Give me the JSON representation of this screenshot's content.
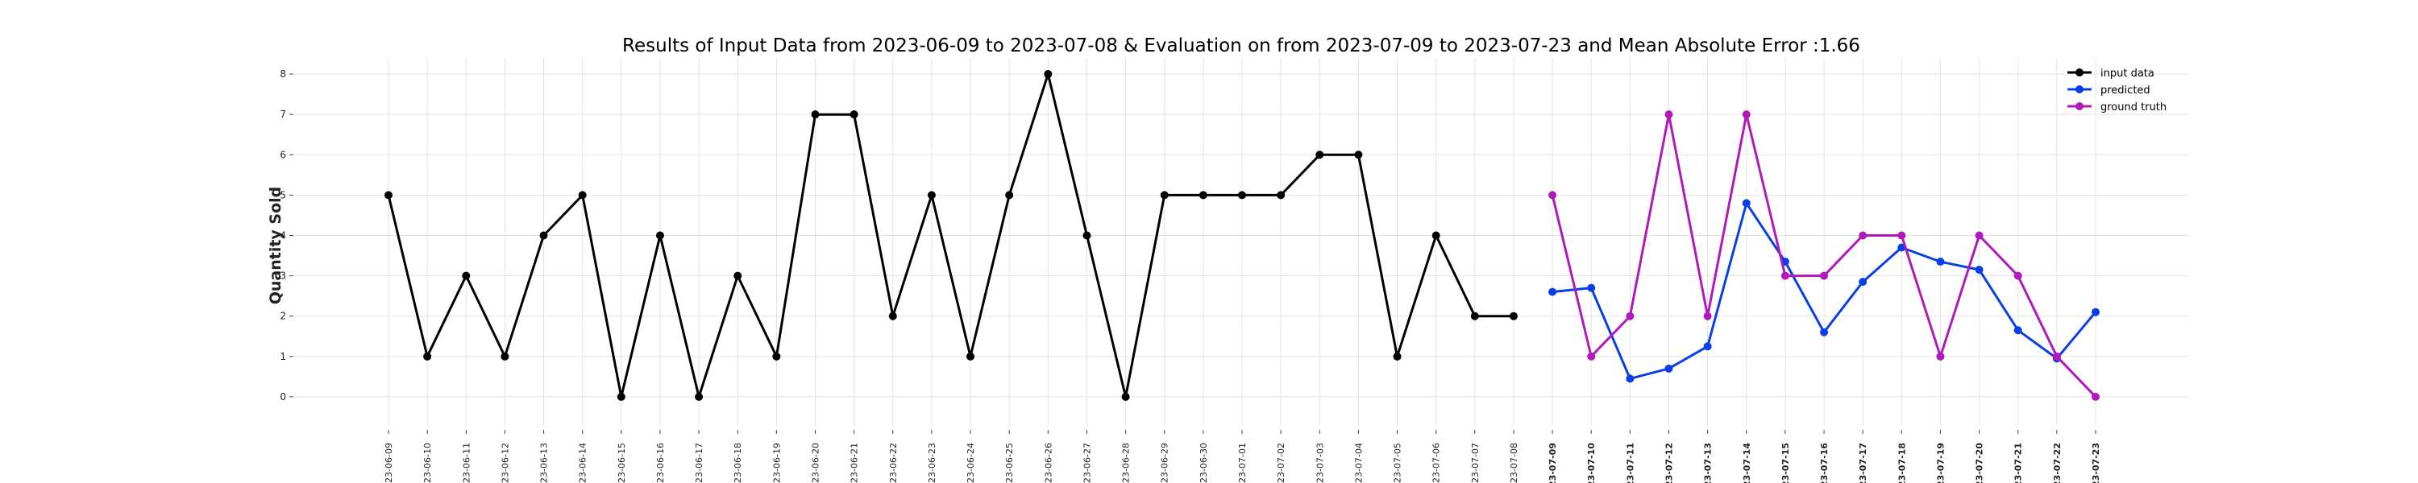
{
  "chart_data": {
    "type": "line",
    "title": "Results of Input Data from 2023-06-09 to 2023-07-08 & Evaluation on from 2023-07-09 to 2023-07-23 and Mean Absolute Error  :1.66",
    "xlabel": "",
    "ylabel": "Quantity Sold",
    "ylim": [
      -0.7,
      8.4
    ],
    "yticks": [
      0,
      1,
      2,
      3,
      4,
      5,
      6,
      7,
      8
    ],
    "grid": true,
    "legend_position": "top-right",
    "x": [
      "2023-06-09",
      "2023-06-10",
      "2023-06-11",
      "2023-06-12",
      "2023-06-13",
      "2023-06-14",
      "2023-06-15",
      "2023-06-16",
      "2023-06-17",
      "2023-06-18",
      "2023-06-19",
      "2023-06-20",
      "2023-06-21",
      "2023-06-22",
      "2023-06-23",
      "2023-06-24",
      "2023-06-25",
      "2023-06-26",
      "2023-06-27",
      "2023-06-28",
      "2023-06-29",
      "2023-06-30",
      "2023-07-01",
      "2023-07-02",
      "2023-07-03",
      "2023-07-04",
      "2023-07-05",
      "2023-07-06",
      "2023-07-07",
      "2023-07-08",
      "2023-07-09",
      "2023-07-10",
      "2023-07-11",
      "2023-07-12",
      "2023-07-13",
      "2023-07-14",
      "2023-07-15",
      "2023-07-16",
      "2023-07-17",
      "2023-07-18",
      "2023-07-19",
      "2023-07-20",
      "2023-07-21",
      "2023-07-22",
      "2023-07-23"
    ],
    "xtick_labels": [
      "-23-06-09",
      "-23-06-10",
      "-23-06-11",
      "-23-06-12",
      "-23-06-13",
      "-23-06-14",
      "-23-06-15",
      "-23-06-16",
      "-23-06-17",
      "-23-06-18",
      "-23-06-19",
      "-23-06-20",
      "-23-06-21",
      "-23-06-22",
      "-23-06-23",
      "-23-06-24",
      "-23-06-25",
      "-23-06-26",
      "-23-06-27",
      "-23-06-28",
      "-23-06-29",
      "-23-06-30",
      "-23-07-01",
      "-23-07-02",
      "-23-07-03",
      "-23-07-04",
      "-23-07-05",
      "-23-07-06",
      "-23-07-07",
      "-23-07-08",
      "-23-07-09",
      "-23-07-10",
      "-23-07-11",
      "-23-07-12",
      "-23-07-13",
      "-23-07-14",
      "-23-07-15",
      "-23-07-16",
      "-23-07-17",
      "-23-07-18",
      "-23-07-19",
      "-23-07-20",
      "-23-07-21",
      "-23-07-22",
      "-23-07-23"
    ],
    "bold_from": "2023-07-09",
    "series": [
      {
        "name": "input data",
        "color": "#000000",
        "x": [
          "2023-06-09",
          "2023-06-10",
          "2023-06-11",
          "2023-06-12",
          "2023-06-13",
          "2023-06-14",
          "2023-06-15",
          "2023-06-16",
          "2023-06-17",
          "2023-06-18",
          "2023-06-19",
          "2023-06-20",
          "2023-06-21",
          "2023-06-22",
          "2023-06-23",
          "2023-06-24",
          "2023-06-25",
          "2023-06-26",
          "2023-06-27",
          "2023-06-28",
          "2023-06-29",
          "2023-06-30",
          "2023-07-01",
          "2023-07-02",
          "2023-07-03",
          "2023-07-04",
          "2023-07-05",
          "2023-07-06",
          "2023-07-07",
          "2023-07-08"
        ],
        "values": [
          5,
          1,
          3,
          1,
          4,
          5,
          0,
          4,
          0,
          3,
          1,
          7,
          7,
          2,
          5,
          1,
          5,
          8,
          4,
          0,
          5,
          5,
          5,
          5,
          6,
          6,
          1,
          4,
          2,
          2
        ]
      },
      {
        "name": "predicted",
        "color": "#0a3fe8",
        "x": [
          "2023-07-09",
          "2023-07-10",
          "2023-07-11",
          "2023-07-12",
          "2023-07-13",
          "2023-07-14",
          "2023-07-15",
          "2023-07-16",
          "2023-07-17",
          "2023-07-18",
          "2023-07-19",
          "2023-07-20",
          "2023-07-21",
          "2023-07-22",
          "2023-07-23"
        ],
        "values": [
          2.6,
          2.7,
          0.45,
          0.7,
          1.25,
          4.8,
          3.35,
          1.6,
          2.85,
          3.7,
          3.35,
          3.15,
          1.65,
          0.95,
          2.1
        ]
      },
      {
        "name": "ground truth",
        "color": "#b01aba",
        "x": [
          "2023-07-09",
          "2023-07-10",
          "2023-07-11",
          "2023-07-12",
          "2023-07-13",
          "2023-07-14",
          "2023-07-15",
          "2023-07-16",
          "2023-07-17",
          "2023-07-18",
          "2023-07-19",
          "2023-07-20",
          "2023-07-21",
          "2023-07-22",
          "2023-07-23"
        ],
        "values": [
          5,
          1,
          2,
          7,
          2,
          7,
          3,
          3,
          4,
          4,
          1,
          4,
          3,
          1,
          0
        ]
      }
    ]
  }
}
